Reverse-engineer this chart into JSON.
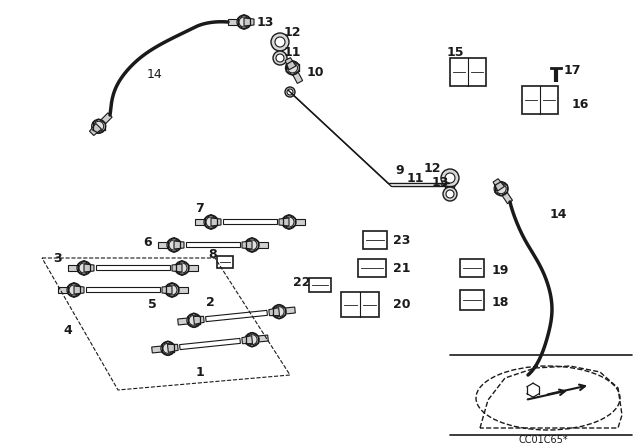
{
  "bg_color": "#ffffff",
  "line_color": "#1a1a1a",
  "fig_width": 6.4,
  "fig_height": 4.48,
  "dpi": 100,
  "pipe_lw": 1.8,
  "hose_lw": 2.5,
  "connector_r": 7,
  "fitting_r": 5
}
